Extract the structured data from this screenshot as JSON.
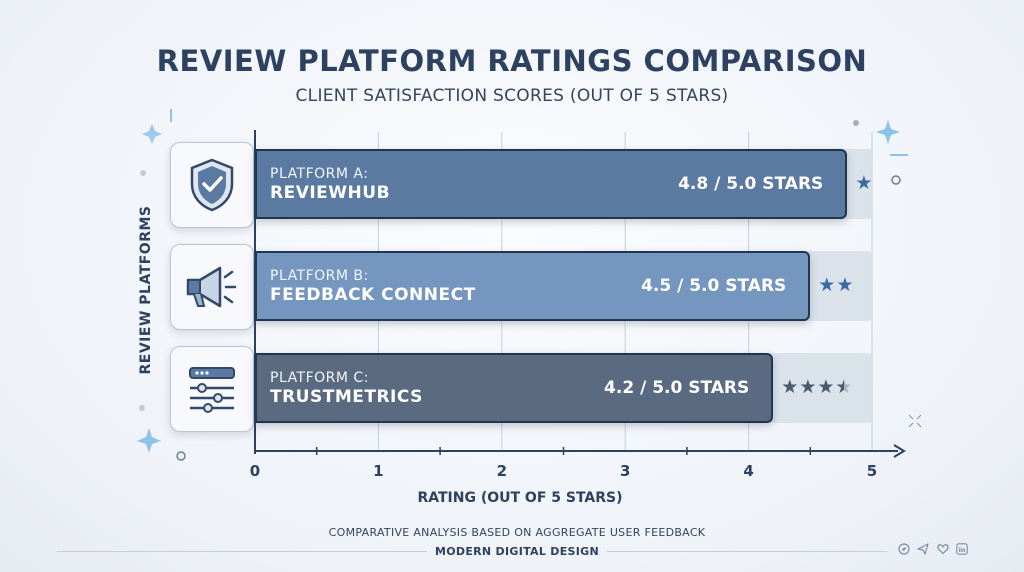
{
  "chart_data": {
    "type": "bar",
    "orientation": "horizontal",
    "title": "REVIEW PLATFORM RATINGS COMPARISON",
    "subtitle": "CLIENT SATISFACTION SCORES (OUT OF 5 STARS)",
    "xlabel": "RATING (OUT OF 5 STARS)",
    "ylabel": "REVIEW PLATFORMS",
    "xlim": [
      0,
      5
    ],
    "ticks": [
      "0",
      "1",
      "2",
      "3",
      "4",
      "5"
    ],
    "grid": true,
    "categories": [
      "PLATFORM A: REVIEWHUB",
      "PLATFORM B: FEEDBACK CONNECT",
      "PLATFORM C: TRUSTMETRICS"
    ],
    "values": [
      4.8,
      4.5,
      4.2
    ],
    "bars": [
      {
        "top_label": "PLATFORM A:",
        "name": "REVIEWHUB",
        "value": 4.8,
        "value_label": "4.8 / 5.0 STARS",
        "icon": "shield-check-icon",
        "color": "#5a7aa2",
        "stars_shown": 1
      },
      {
        "top_label": "PLATFORM B:",
        "name": "FEEDBACK CONNECT",
        "value": 4.5,
        "value_label": "4.5 / 5.0 STARS",
        "icon": "megaphone-icon",
        "color": "#7596be",
        "stars_shown": 2
      },
      {
        "top_label": "PLATFORM C:",
        "name": "TRUSTMETRICS",
        "value": 4.2,
        "value_label": "4.2 / 5.0 STARS",
        "icon": "sliders-icon",
        "color": "#5a6a81",
        "stars_shown": 3.5
      }
    ]
  },
  "footer": {
    "note": "COMPARATIVE ANALYSIS BASED ON AGGREGATE USER FEEDBACK",
    "brand": "MODERN DIGITAL DESIGN",
    "social_icons": [
      "compass-icon",
      "send-icon",
      "heart-icon",
      "linkedin-icon"
    ]
  },
  "colors": {
    "title": "#2d4160",
    "axis": "#2d4160",
    "track": "#d6dee8",
    "sparkle": "#8cc3e6"
  }
}
